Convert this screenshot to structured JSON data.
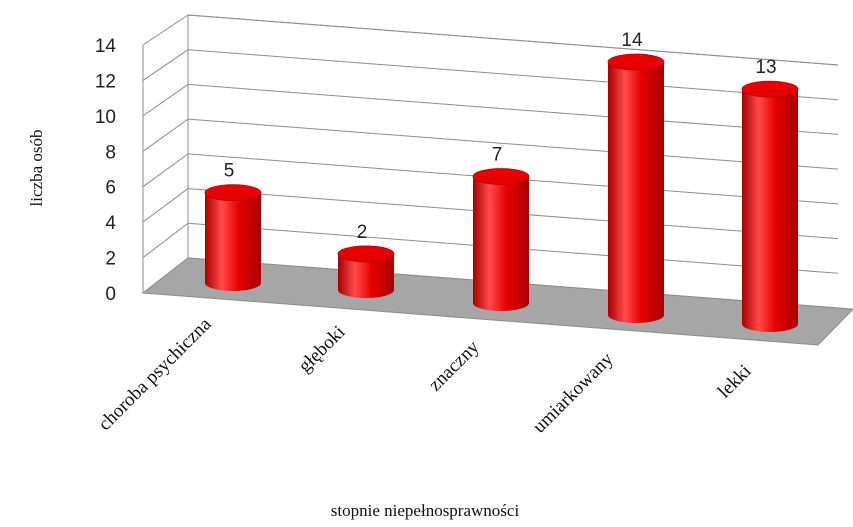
{
  "chart_data": {
    "type": "bar",
    "style": "3d-cylinder",
    "categories": [
      "choroba psychiczna",
      "głęboki",
      "znaczny",
      "umiarkowany",
      "lekki"
    ],
    "values": [
      5,
      2,
      7,
      14,
      13
    ],
    "data_labels": [
      "5",
      "2",
      "7",
      "14",
      "13"
    ],
    "xlabel": "stopnie niepełnosprawności",
    "ylabel": "liczba osób",
    "ylim": [
      0,
      14
    ],
    "yticks": [
      0,
      2,
      4,
      6,
      8,
      10,
      12,
      14
    ],
    "grid": true,
    "legend": "none",
    "colors": {
      "bar": "#e60000",
      "bar_dark": "#a80000",
      "bar_light": "#ff4a4a",
      "floor": "#a6a6a6",
      "grid": "#8c8c8c"
    }
  }
}
